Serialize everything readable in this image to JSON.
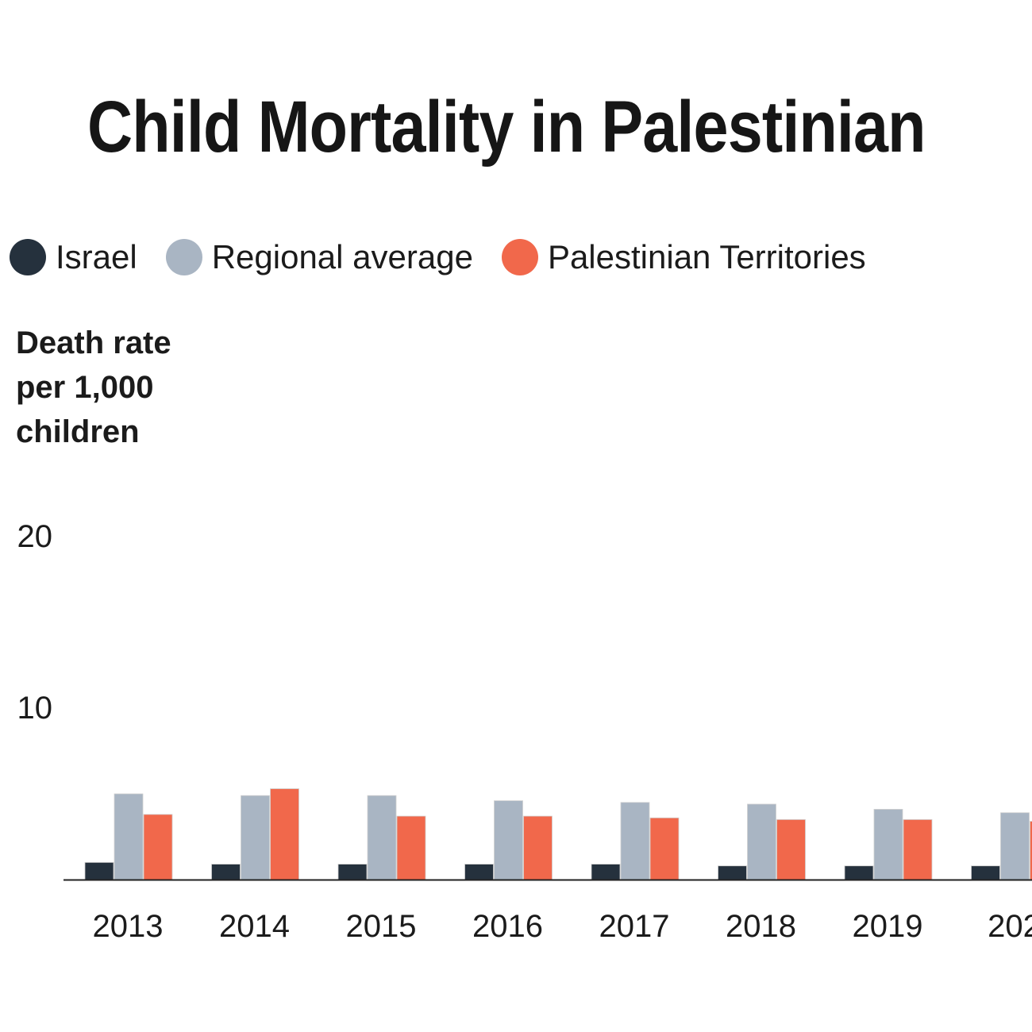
{
  "chart_data": {
    "type": "bar",
    "title": "Child Mortality in Palestinian",
    "ylabel": "Death rate per 1,000 children",
    "xlabel": "",
    "ylim": [
      0,
      20
    ],
    "yticks": [
      "20",
      "10"
    ],
    "grid": false,
    "legend_position": "top-left",
    "categories": [
      "2013",
      "2014",
      "2015",
      "2016",
      "2017",
      "2018",
      "2019",
      "202"
    ],
    "series": [
      {
        "name": "Israel",
        "color": "#25313d",
        "values": [
          1.0,
          0.9,
          0.9,
          0.9,
          0.9,
          0.8,
          0.8,
          0.8
        ]
      },
      {
        "name": "Regional average",
        "color": "#a9b5c3",
        "values": [
          5.0,
          4.9,
          4.9,
          4.6,
          4.5,
          4.4,
          4.1,
          3.9
        ]
      },
      {
        "name": "Palestinian Territories",
        "color": "#f1684b",
        "values": [
          3.8,
          5.3,
          3.7,
          3.7,
          3.6,
          3.5,
          3.5,
          3.4
        ]
      }
    ]
  }
}
